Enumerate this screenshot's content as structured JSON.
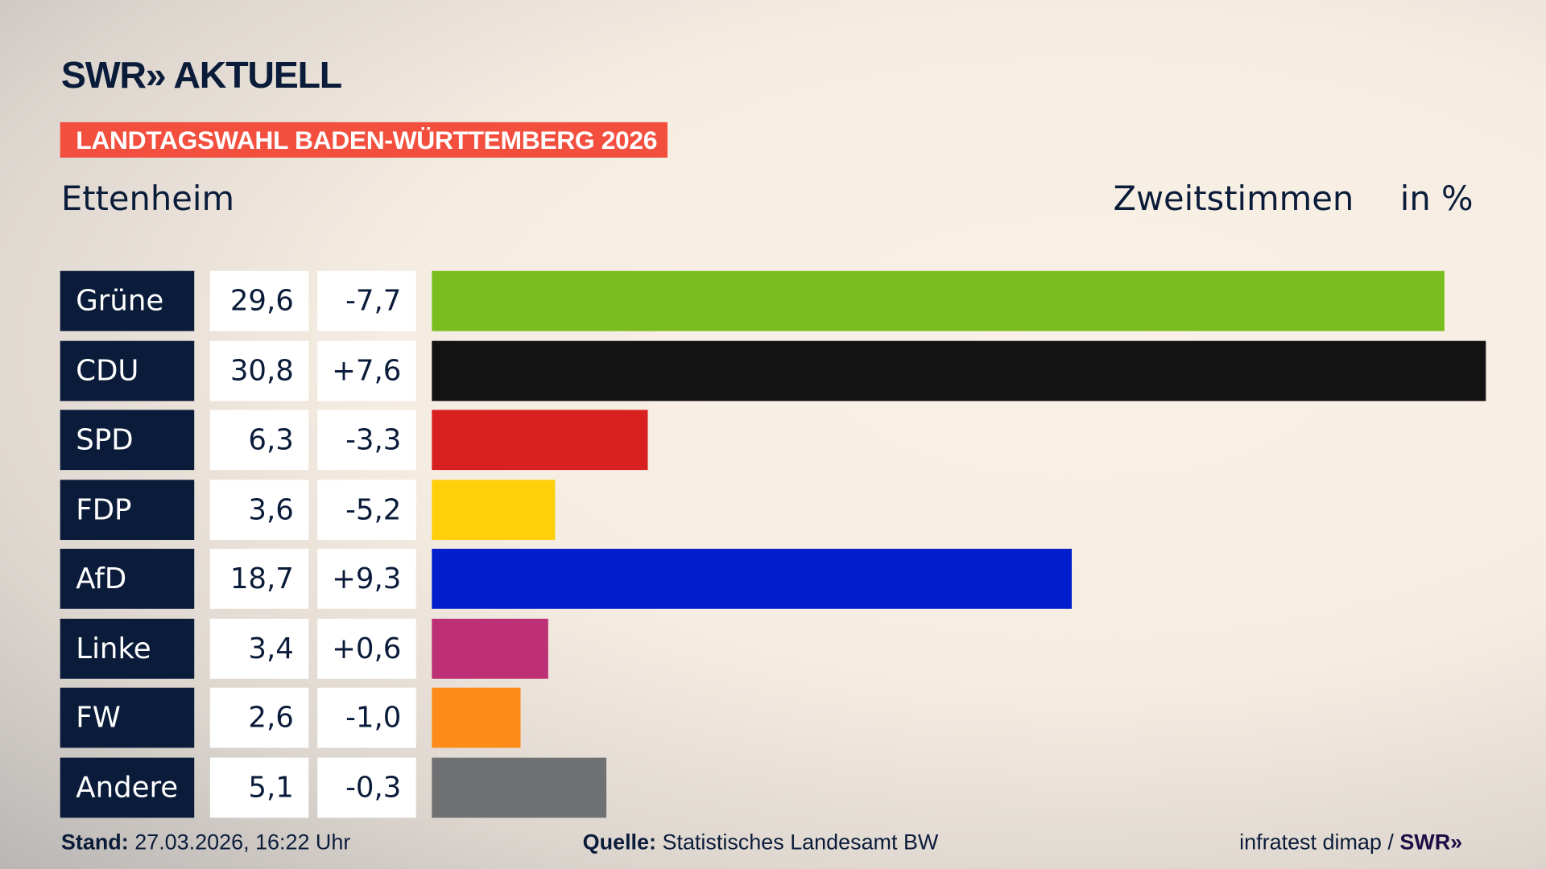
{
  "header": {
    "logo": "SWR» AKTUELL",
    "banner": "LANDTAGSWAHL BADEN-WÜRTTEMBERG 2026",
    "place": "Ettenheim",
    "vote_type": "Zweitstimmen",
    "unit": "in %"
  },
  "chart_data": {
    "type": "bar",
    "orientation": "horizontal",
    "xlim": [
      0,
      30.8
    ],
    "categories": [
      "Grüne",
      "CDU",
      "SPD",
      "FDP",
      "AfD",
      "Linke",
      "FW",
      "Andere"
    ],
    "values": [
      29.6,
      30.8,
      6.3,
      3.6,
      18.7,
      3.4,
      2.6,
      5.1
    ],
    "value_labels": [
      "29,6",
      "30,8",
      "6,3",
      "3,6",
      "18,7",
      "3,4",
      "2,6",
      "5,1"
    ],
    "change_labels": [
      "-7,7",
      "+7,6",
      "-3,3",
      "-5,2",
      "+9,3",
      "+0,6",
      "-1,0",
      "-0,3"
    ],
    "colors": [
      "#7abd1e",
      "#131313",
      "#d7201f",
      "#fecf0a",
      "#001ecb",
      "#bd3076",
      "#fd8b19",
      "#707173"
    ]
  },
  "footer": {
    "stand_label": "Stand:",
    "stand_value": "27.03.2026, 16:22 Uhr",
    "source_label": "Quelle:",
    "source_value": "Statistisches Landesamt BW",
    "credit": "infratest dimap / ",
    "credit_logo": "SWR»"
  }
}
